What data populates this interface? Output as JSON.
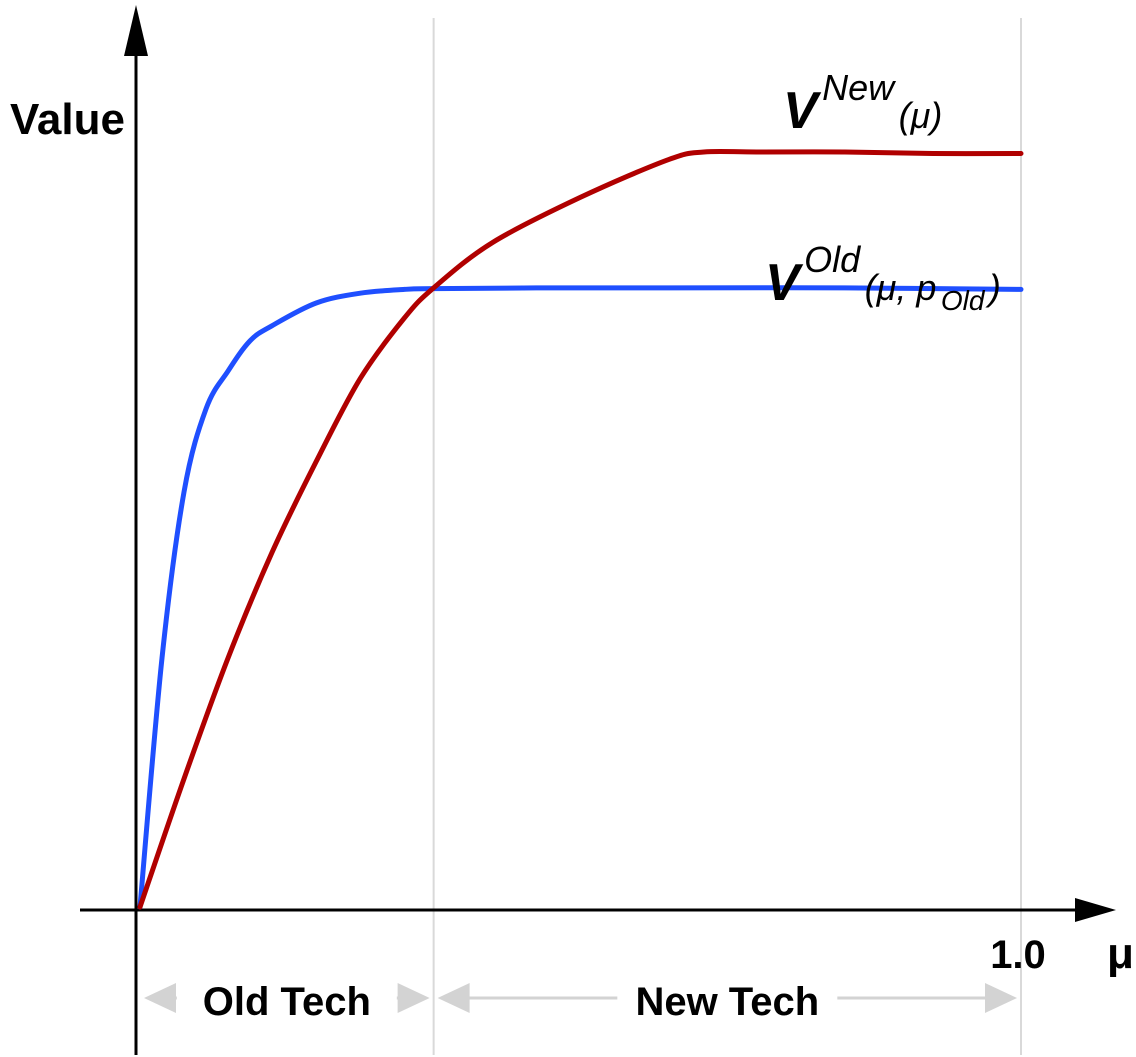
{
  "chart_data": {
    "type": "line",
    "ylabel": "Value",
    "xlabel": "μ",
    "xlim": [
      0,
      1.0
    ],
    "ylim": [
      0,
      1.0
    ],
    "x_ticks": [
      {
        "value": 1.0,
        "label": "1.0"
      }
    ],
    "grid": false,
    "boundary_x": 0.3333,
    "regions": [
      {
        "name": "old-tech",
        "label": "Old Tech",
        "range": [
          0,
          0.3333
        ]
      },
      {
        "name": "new-tech",
        "label": "New Tech",
        "range": [
          0.3333,
          1.0
        ]
      }
    ],
    "series": [
      {
        "name": "V^Old(μ, p_Old)",
        "label_main": "V",
        "label_sup": "Old",
        "label_args": "(μ, p",
        "label_sub": "Old",
        "label_close": ")",
        "color": "#1f4fff",
        "x": [
          0,
          0.025,
          0.05,
          0.075,
          0.1,
          0.125,
          0.15,
          0.2,
          0.25,
          0.3,
          0.3333,
          0.45,
          0.6,
          0.8,
          1.0
        ],
        "values": [
          0,
          0.33,
          0.55,
          0.66,
          0.71,
          0.75,
          0.77,
          0.8,
          0.813,
          0.818,
          0.819,
          0.82,
          0.82,
          0.82,
          0.818
        ]
      },
      {
        "name": "V^New(μ)",
        "label_main": "V",
        "label_sup": "New",
        "label_args": "(μ)",
        "color": "#b00000",
        "x": [
          0,
          0.05,
          0.1,
          0.15,
          0.2,
          0.25,
          0.3,
          0.3333,
          0.4,
          0.5,
          0.6,
          0.64,
          0.7,
          0.8,
          0.9,
          1.0
        ],
        "values": [
          0,
          0.17,
          0.33,
          0.47,
          0.59,
          0.7,
          0.78,
          0.82,
          0.88,
          0.94,
          0.99,
          1.0,
          1.0,
          1.0,
          0.998,
          0.998
        ]
      }
    ]
  }
}
